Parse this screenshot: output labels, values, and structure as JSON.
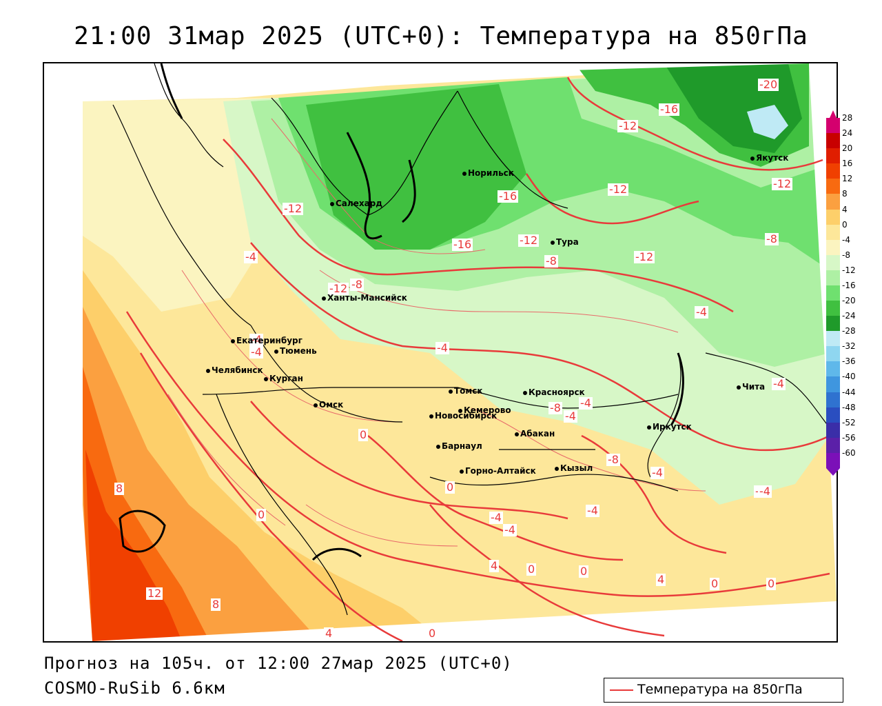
{
  "title": "21:00 31мар 2025 (UTC+0): Температура на 850гПа",
  "forecast_line": "Прогноз на 105ч. от 12:00 27мар 2025 (UTC+0)",
  "model_line": "COSMO-RuSib 6.6км",
  "legend": {
    "label": "Температура на 850гПа",
    "line_color": "#e83a3a"
  },
  "colorbar": {
    "labels": [
      "28",
      "24",
      "20",
      "16",
      "12",
      "8",
      "4",
      "0",
      "-4",
      "-8",
      "-12",
      "-16",
      "-20",
      "-24",
      "-28",
      "-32",
      "-36",
      "-40",
      "-44",
      "-48",
      "-52",
      "-56",
      "-60"
    ],
    "colors": [
      "#d4006e",
      "#c80000",
      "#e01e00",
      "#f04000",
      "#f86a10",
      "#fba040",
      "#fdcf6a",
      "#fde79a",
      "#fbf4c0",
      "#d7f7c7",
      "#aef0a4",
      "#6fe06f",
      "#40c040",
      "#1f9a2a",
      "#bfeaf5",
      "#8fd6f0",
      "#5fb8ea",
      "#3f96df",
      "#2f72d0",
      "#2a4ec0",
      "#3a2ea8",
      "#5b20a8",
      "#7b10b8"
    ]
  },
  "cities": [
    {
      "name": "Салехард"
    },
    {
      "name": "Норильск"
    },
    {
      "name": "Якутск"
    },
    {
      "name": "Тура"
    },
    {
      "name": "Ханты-Мансийск"
    },
    {
      "name": "Екатеринбург"
    },
    {
      "name": "Тюмень"
    },
    {
      "name": "Челябинск"
    },
    {
      "name": "Курган"
    },
    {
      "name": "Омск"
    },
    {
      "name": "Новосибирск"
    },
    {
      "name": "Томск"
    },
    {
      "name": "Кемерово"
    },
    {
      "name": "Красноярск"
    },
    {
      "name": "Барнаул"
    },
    {
      "name": "Абакан"
    },
    {
      "name": "Горно-Алтайск"
    },
    {
      "name": "Кызыл"
    },
    {
      "name": "Иркутск"
    },
    {
      "name": "Чита"
    }
  ],
  "contour_labels": [
    "-20",
    "-16",
    "-12",
    "-16",
    "-12",
    "-12",
    "-16",
    "-12",
    "-8",
    "-12",
    "-8",
    "-12",
    "-4",
    "-8",
    "-12",
    "-4",
    "-4",
    "-4",
    "-4",
    "-4",
    "-4",
    "0",
    "-8",
    "-4",
    "-8",
    "-4",
    "0",
    "-4",
    "-4",
    "-4",
    "-4",
    "8",
    "0",
    "4",
    "0",
    "0",
    "4",
    "0",
    "0",
    "12",
    "8",
    "4",
    "0",
    "-4"
  ]
}
